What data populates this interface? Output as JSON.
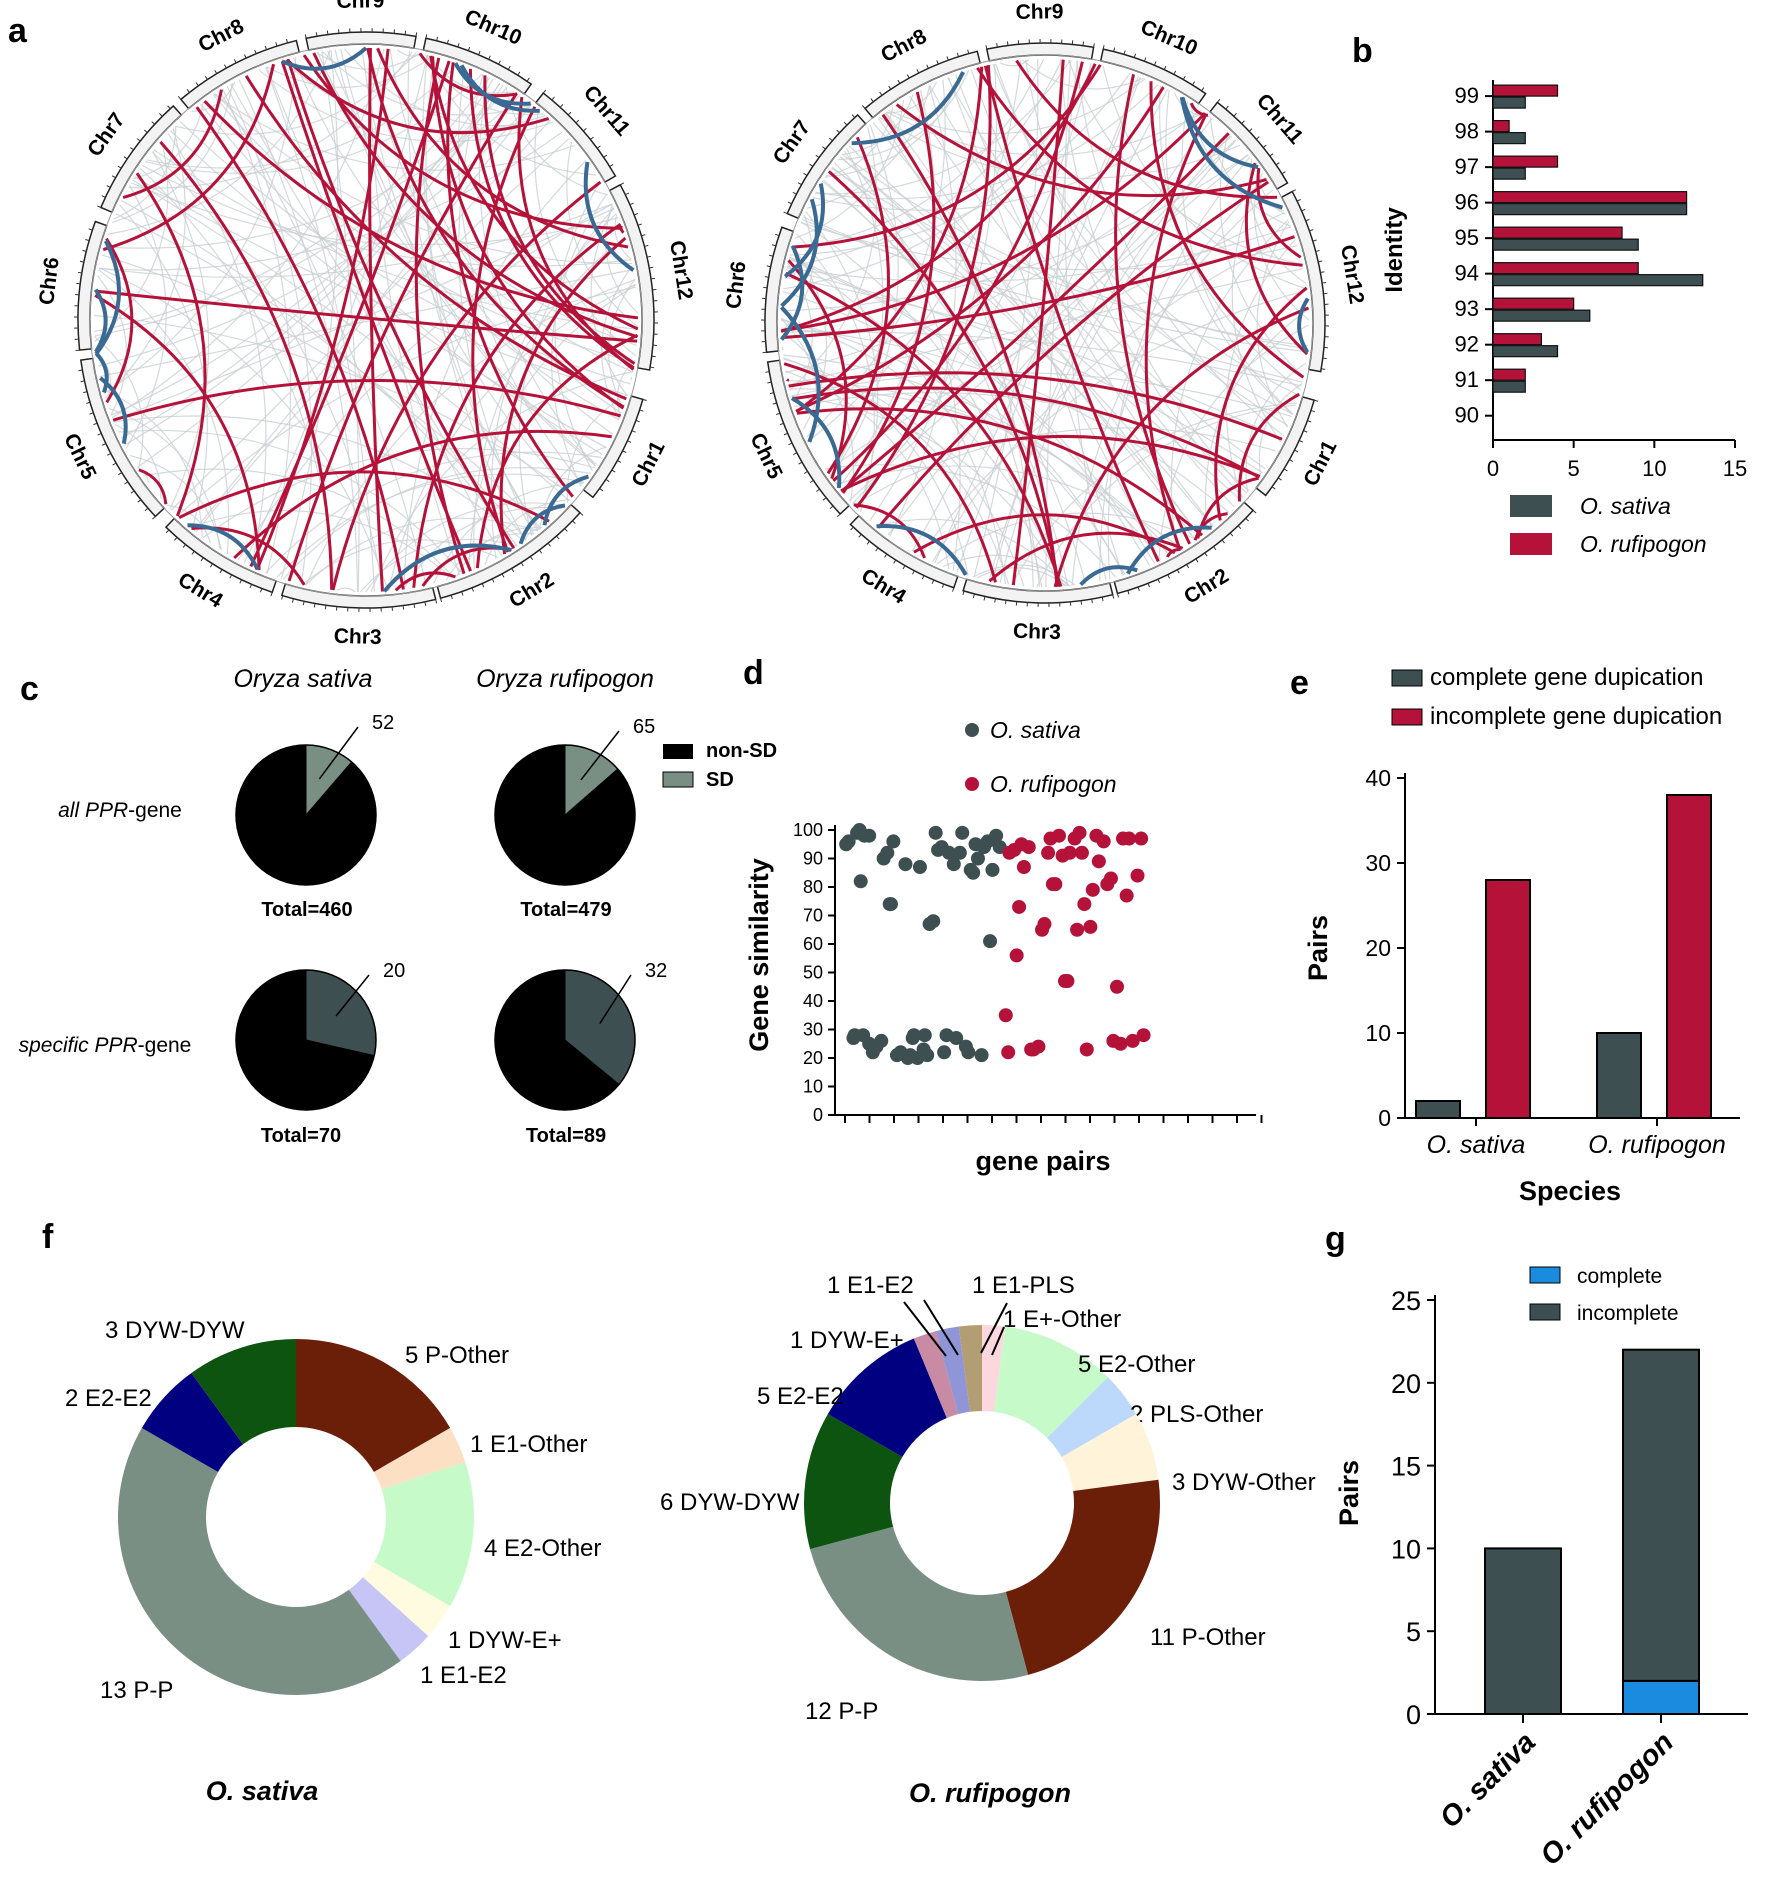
{
  "panels": {
    "a": "a",
    "b": "b",
    "c": "c",
    "d": "d",
    "e": "e",
    "f": "f",
    "g": "g"
  },
  "colors": {
    "dark": "#3d4f51",
    "red": "#b5123a",
    "blue_link": "#3a6a93",
    "grey_link": "#c9d0d2",
    "sd": "#7a8f84",
    "nonsd": "#000000",
    "complete_blue": "#1b8be0"
  },
  "panel_a": {
    "chromosomes": [
      "Chr1",
      "Chr2",
      "Chr3",
      "Chr4",
      "Chr5",
      "Chr6",
      "Chr7",
      "Chr8",
      "Chr9",
      "Chr10",
      "Chr11",
      "Chr12"
    ]
  },
  "chart_data": [
    {
      "id": "b",
      "type": "bar",
      "orientation": "horizontal",
      "ylabel": "Identity",
      "xlabel": "",
      "categories": [
        "99",
        "98",
        "97",
        "96",
        "95",
        "94",
        "93",
        "92",
        "91",
        "90"
      ],
      "xlim": [
        0,
        15
      ],
      "xticks": [
        "0",
        "5",
        "10",
        "15"
      ],
      "series": [
        {
          "name": "O. sativa",
          "values": [
            2,
            2,
            2,
            12,
            9,
            13,
            6,
            4,
            2,
            0
          ]
        },
        {
          "name": "O. rufipogon",
          "values": [
            4,
            1,
            4,
            12,
            8,
            9,
            5,
            3,
            2,
            0
          ]
        }
      ],
      "legend": [
        "O. sativa",
        "O. rufipogon"
      ]
    },
    {
      "id": "c",
      "type": "pie",
      "col_titles": [
        "Oryza sativa",
        "Oryza rufipogon"
      ],
      "row_labels_prefix": [
        "all ",
        "specific "
      ],
      "row_labels_gene": [
        "PPR",
        "PPR"
      ],
      "row_labels_suffix": [
        "-gene",
        "-gene"
      ],
      "legend": [
        "non-SD",
        "SD"
      ],
      "pies": [
        {
          "sd": 52,
          "total": 460,
          "sd_label": "52",
          "total_label": "Total=460"
        },
        {
          "sd": 65,
          "total": 479,
          "sd_label": "65",
          "total_label": "Total=479"
        },
        {
          "sd": 20,
          "total": 70,
          "sd_label": "20",
          "total_label": "Total=70"
        },
        {
          "sd": 32,
          "total": 89,
          "sd_label": "32",
          "total_label": "Total=89"
        }
      ]
    },
    {
      "id": "d",
      "type": "scatter",
      "ylabel": "Gene similarity",
      "xlabel": "gene pairs",
      "ylim": [
        0,
        100
      ],
      "yticks": [
        "0",
        "10",
        "20",
        "30",
        "40",
        "50",
        "60",
        "70",
        "80",
        "90",
        "100"
      ],
      "legend": [
        "O. sativa",
        "O. rufipogon"
      ],
      "x_range": [
        0,
        34
      ],
      "series": [
        {
          "name": "O. sativa",
          "points": [
            [
              0.1,
              95
            ],
            [
              0.3,
              96
            ],
            [
              0.7,
              27
            ],
            [
              0.8,
              28
            ],
            [
              1.0,
              99
            ],
            [
              1.2,
              100
            ],
            [
              1.3,
              82
            ],
            [
              1.5,
              28
            ],
            [
              1.6,
              98
            ],
            [
              2.0,
              98
            ],
            [
              2.0,
              25
            ],
            [
              2.3,
              22
            ],
            [
              2.6,
              24
            ],
            [
              3.0,
              26
            ],
            [
              3.2,
              90
            ],
            [
              3.5,
              92
            ],
            [
              3.7,
              74
            ],
            [
              3.8,
              74
            ],
            [
              4.0,
              96
            ],
            [
              4.3,
              21
            ],
            [
              4.6,
              22
            ],
            [
              5.0,
              88
            ],
            [
              5.2,
              20
            ],
            [
              5.4,
              21
            ],
            [
              5.6,
              27
            ],
            [
              5.7,
              28
            ],
            [
              6.0,
              20
            ],
            [
              6.2,
              87
            ],
            [
              6.5,
              23
            ],
            [
              6.6,
              28
            ],
            [
              6.8,
              21
            ],
            [
              7.0,
              67
            ],
            [
              7.3,
              68
            ],
            [
              7.5,
              99
            ],
            [
              7.7,
              93
            ],
            [
              8.0,
              94
            ],
            [
              8.2,
              22
            ],
            [
              8.4,
              28
            ],
            [
              8.6,
              92
            ],
            [
              9.0,
              88
            ],
            [
              9.2,
              27
            ],
            [
              9.5,
              92
            ],
            [
              9.7,
              99
            ],
            [
              10.0,
              24
            ],
            [
              10.2,
              22
            ],
            [
              10.4,
              86
            ],
            [
              10.6,
              85
            ],
            [
              10.8,
              95
            ],
            [
              11.0,
              90
            ],
            [
              11.3,
              21
            ],
            [
              11.5,
              94
            ],
            [
              11.8,
              96
            ],
            [
              12.0,
              61
            ],
            [
              12.2,
              86
            ],
            [
              12.5,
              98
            ],
            [
              12.8,
              94
            ]
          ]
        },
        {
          "name": "O. rufipogon",
          "points": [
            [
              13.3,
              35
            ],
            [
              13.5,
              22
            ],
            [
              13.6,
              92
            ],
            [
              14.0,
              93
            ],
            [
              14.2,
              56
            ],
            [
              14.4,
              73
            ],
            [
              14.6,
              95
            ],
            [
              14.8,
              87
            ],
            [
              15.2,
              94
            ],
            [
              15.4,
              23
            ],
            [
              15.6,
              23
            ],
            [
              16.0,
              24
            ],
            [
              16.3,
              65
            ],
            [
              16.5,
              67
            ],
            [
              16.8,
              92
            ],
            [
              17.0,
              97
            ],
            [
              17.2,
              81
            ],
            [
              17.4,
              81
            ],
            [
              17.7,
              98
            ],
            [
              18.0,
              91
            ],
            [
              18.2,
              47
            ],
            [
              18.4,
              47
            ],
            [
              18.6,
              92
            ],
            [
              19.0,
              97
            ],
            [
              19.2,
              65
            ],
            [
              19.4,
              99
            ],
            [
              19.6,
              92
            ],
            [
              19.8,
              74
            ],
            [
              20.0,
              23
            ],
            [
              20.3,
              66
            ],
            [
              20.5,
              79
            ],
            [
              20.8,
              98
            ],
            [
              21.0,
              89
            ],
            [
              21.4,
              96
            ],
            [
              21.7,
              81
            ],
            [
              22.0,
              83
            ],
            [
              22.2,
              26
            ],
            [
              22.5,
              45
            ],
            [
              22.8,
              25
            ],
            [
              23.0,
              97
            ],
            [
              23.3,
              77
            ],
            [
              23.5,
              97
            ],
            [
              23.8,
              26
            ],
            [
              24.2,
              84
            ],
            [
              24.5,
              97
            ],
            [
              24.7,
              28
            ]
          ]
        }
      ]
    },
    {
      "id": "e",
      "type": "bar",
      "xlabel": "Species",
      "ylabel": "Pairs",
      "categories": [
        "O. sativa",
        "O. rufipogon"
      ],
      "ylim": [
        0,
        40
      ],
      "yticks": [
        "0",
        "10",
        "20",
        "30",
        "40"
      ],
      "series": [
        {
          "name": "complete gene dupication",
          "values": [
            2,
            10
          ]
        },
        {
          "name": "incomplete gene dupication",
          "values": [
            28,
            38
          ]
        }
      ],
      "legend": [
        "complete gene dupication",
        "incomplete gene dupication"
      ]
    },
    {
      "id": "f",
      "type": "pie",
      "style": "donut",
      "charts": [
        {
          "title": "O. sativa",
          "slices": [
            {
              "label": "5 P-Other",
              "value": 5,
              "color": "#6b1e08"
            },
            {
              "label": "1 E1-Other",
              "value": 1,
              "color": "#fde0c4"
            },
            {
              "label": "4 E2-Other",
              "value": 4,
              "color": "#c6fbc9"
            },
            {
              "label": "1 DYW-E+",
              "value": 1,
              "color": "#fffbe0"
            },
            {
              "label": "1 E1-E2",
              "value": 1,
              "color": "#c7c4f6"
            },
            {
              "label": "13 P-P",
              "value": 13,
              "color": "#7a8f84"
            },
            {
              "label": "2 E2-E2",
              "value": 2,
              "color": "#000080"
            },
            {
              "label": "3 DYW-DYW",
              "value": 3,
              "color": "#0d5410"
            }
          ]
        },
        {
          "title": "O. rufipogon",
          "slices": [
            {
              "label": "1 E+-Other",
              "value": 1,
              "color": "#fcd7de"
            },
            {
              "label": "5 E2-Other",
              "value": 5,
              "color": "#c6fbc9"
            },
            {
              "label": "2 PLS-Other",
              "value": 2,
              "color": "#bcd8fb"
            },
            {
              "label": "3 DYW-Other",
              "value": 3,
              "color": "#fff3d9"
            },
            {
              "label": "11 P-Other",
              "value": 11,
              "color": "#6b1e08"
            },
            {
              "label": "12 P-P",
              "value": 12,
              "color": "#7a8f84"
            },
            {
              "label": "6 DYW-DYW",
              "value": 6,
              "color": "#0d5410"
            },
            {
              "label": "5 E2-E2",
              "value": 5,
              "color": "#000080"
            },
            {
              "label": "1 DYW-E+",
              "value": 1,
              "color": "#c98aa3"
            },
            {
              "label": "1 E1-E2",
              "value": 1,
              "color": "#8f95d6"
            },
            {
              "label": "1 E1-PLS",
              "value": 1,
              "color": "#b39e73"
            }
          ]
        }
      ]
    },
    {
      "id": "g",
      "type": "bar",
      "stacked": true,
      "ylabel": "Pairs",
      "xlabel": "",
      "categories": [
        "O. sativa",
        "O. rufipogon"
      ],
      "ylim": [
        0,
        25
      ],
      "yticks": [
        "0",
        "5",
        "10",
        "15",
        "20",
        "25"
      ],
      "series": [
        {
          "name": "complete",
          "values": [
            0,
            2
          ]
        },
        {
          "name": "incomplete",
          "values": [
            10,
            20
          ]
        }
      ],
      "legend": [
        "complete",
        "incomplete"
      ]
    }
  ]
}
